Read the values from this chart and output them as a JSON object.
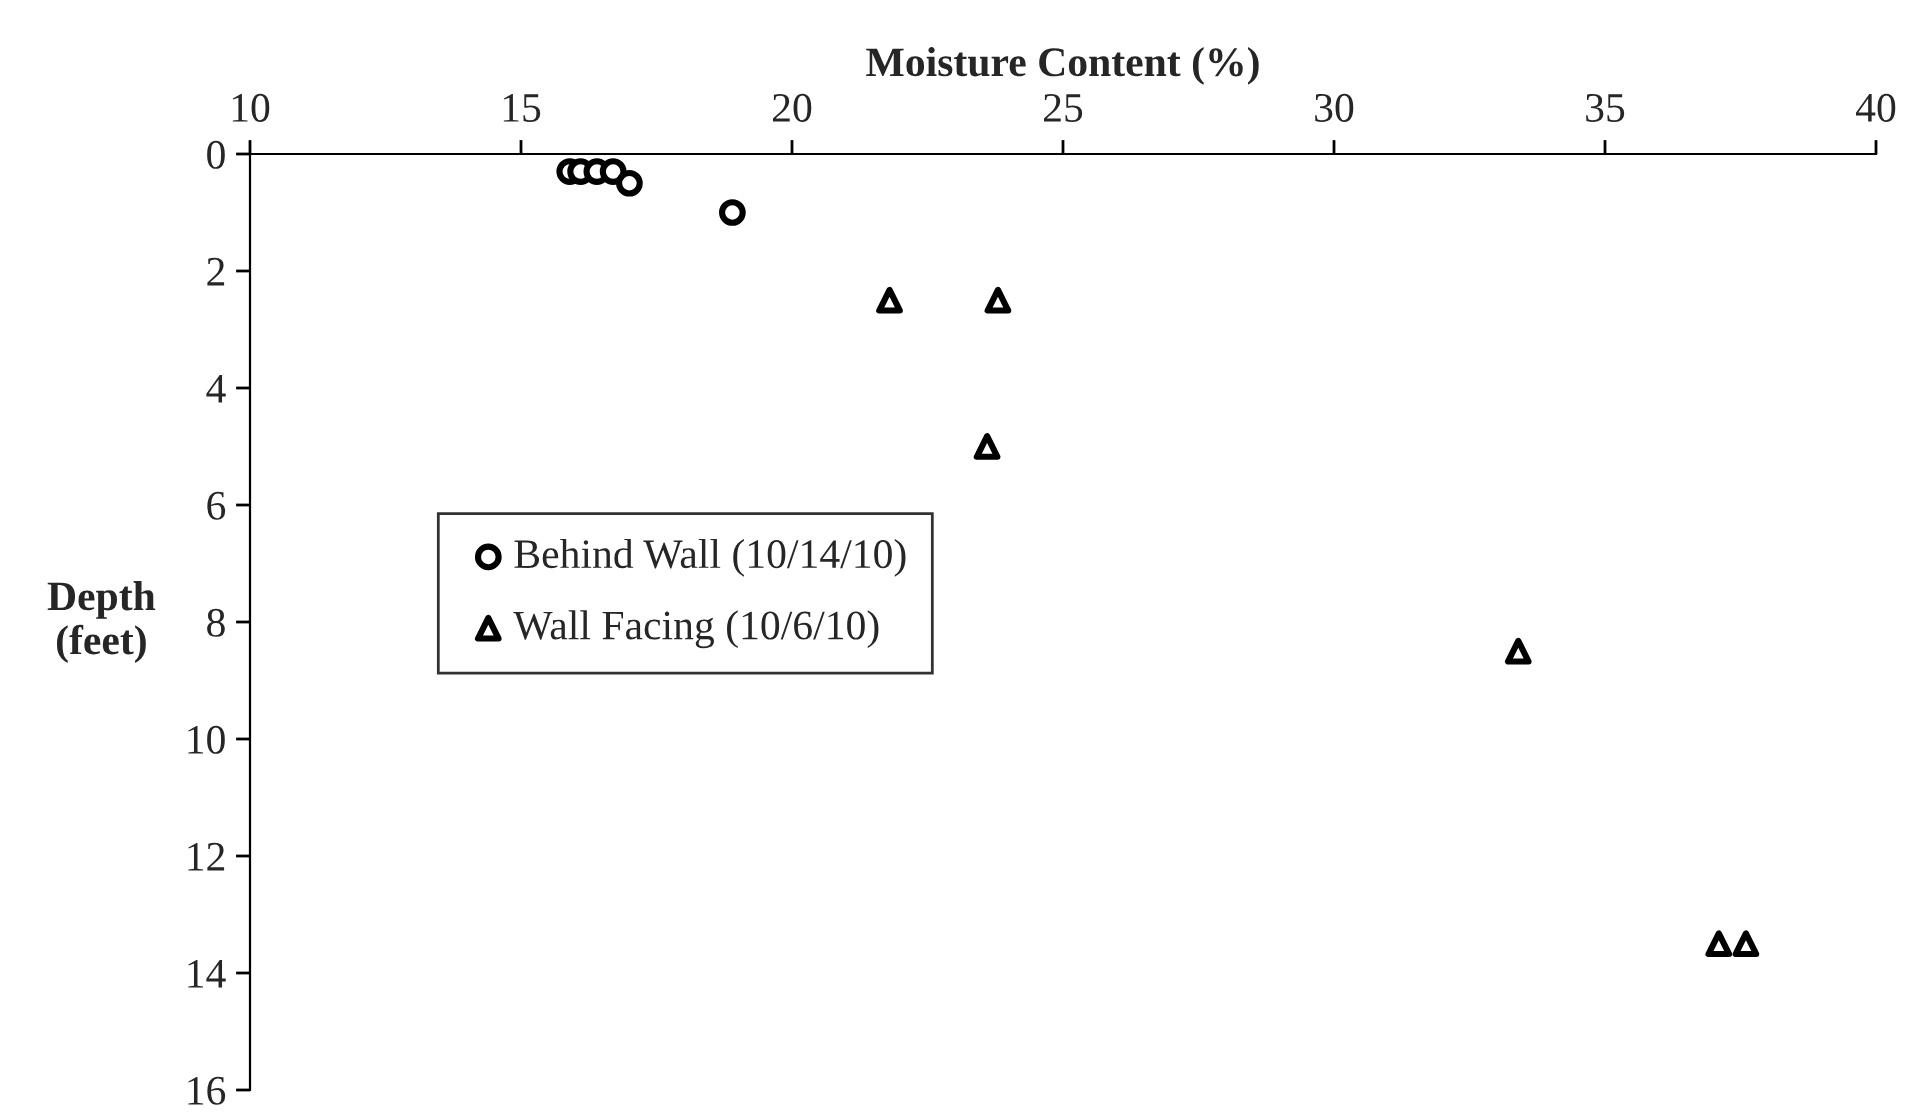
{
  "chart_data": {
    "type": "scatter",
    "xlabel": "Moisture Content (%)",
    "ylabel": "Depth\n(feet)",
    "xlim": [
      10,
      40
    ],
    "xticks": [
      10,
      15,
      20,
      25,
      30,
      35,
      40
    ],
    "ylim": [
      16,
      0
    ],
    "yticks": [
      0,
      2,
      4,
      6,
      8,
      10,
      12,
      14,
      16
    ],
    "grid": false,
    "legend": "left",
    "series": [
      {
        "name": "Behind Wall (10/14/10)",
        "color": "#000000",
        "marker": "circle",
        "x": [
          15.9,
          16.1,
          16.4,
          16.7,
          17.0,
          18.9
        ],
        "values": [
          0.3,
          0.3,
          0.3,
          0.3,
          0.5,
          1.0
        ]
      },
      {
        "name": "Wall Facing (10/6/10)",
        "color": "#000000",
        "marker": "triangle",
        "x": [
          21.8,
          23.8,
          23.6,
          33.4,
          37.1,
          37.6
        ],
        "values": [
          2.5,
          2.5,
          5.0,
          8.5,
          13.5,
          13.5
        ]
      }
    ]
  }
}
